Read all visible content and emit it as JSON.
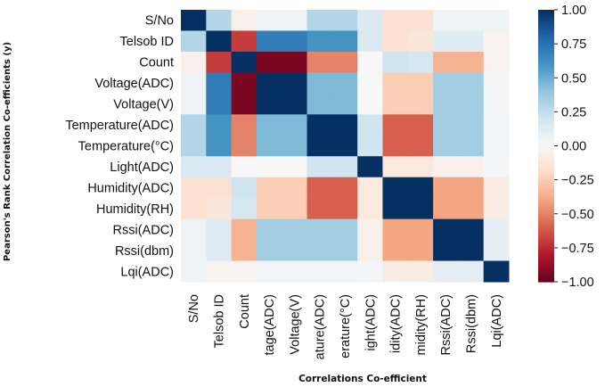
{
  "chart_data": {
    "type": "heatmap",
    "title": "",
    "xlabel": "Correlations Co-efficient",
    "ylabel": "Pearson's Rank Correlation Co-efficients (y)",
    "y_categories": [
      "S/No",
      "Telsob ID",
      "Count",
      "Voltage(ADC)",
      "Voltage(V)",
      "Temperature(ADC)",
      "Temperature(°C)",
      "Light(ADC)",
      "Humidity(ADC)",
      "Humidity(RH)",
      "Rssi(ADC)",
      "Rssi(dbm)",
      "Lqi(ADC)"
    ],
    "x_tick_labels": [
      "S/No",
      "Telsob ID",
      "Count",
      "tage(ADC)",
      "Voltage(V)",
      "ature(ADC)",
      "erature(°C)",
      "ight(ADC)",
      "idity(ADC)",
      "midity(RH)",
      "Rssi(ADC)",
      "Rssi(dbm)",
      "Lqi(ADC)"
    ],
    "values": [
      [
        1.0,
        0.3,
        -0.05,
        0.05,
        0.05,
        0.3,
        0.3,
        0.15,
        -0.15,
        -0.15,
        0.05,
        0.05,
        0.05
      ],
      [
        0.3,
        1.0,
        -0.7,
        0.7,
        0.7,
        0.6,
        0.6,
        0.15,
        -0.15,
        -0.12,
        0.12,
        0.12,
        -0.03
      ],
      [
        -0.05,
        -0.7,
        1.0,
        -0.95,
        -0.95,
        -0.5,
        -0.5,
        0.0,
        0.2,
        0.18,
        -0.35,
        -0.35,
        -0.03
      ],
      [
        0.05,
        0.7,
        -0.95,
        1.0,
        1.0,
        0.45,
        0.45,
        0.0,
        -0.25,
        -0.25,
        0.35,
        0.35,
        0.02
      ],
      [
        0.05,
        0.7,
        -0.95,
        1.0,
        1.0,
        0.45,
        0.45,
        0.0,
        -0.25,
        -0.25,
        0.35,
        0.35,
        0.02
      ],
      [
        0.3,
        0.6,
        -0.5,
        0.45,
        0.45,
        1.0,
        1.0,
        0.2,
        -0.6,
        -0.6,
        0.35,
        0.35,
        0.03
      ],
      [
        0.3,
        0.6,
        -0.5,
        0.45,
        0.45,
        1.0,
        1.0,
        0.2,
        -0.6,
        -0.6,
        0.35,
        0.35,
        0.03
      ],
      [
        0.15,
        0.15,
        0.0,
        0.0,
        0.0,
        0.2,
        0.2,
        1.0,
        -0.1,
        -0.1,
        -0.05,
        -0.05,
        0.02
      ],
      [
        -0.15,
        -0.15,
        0.2,
        -0.25,
        -0.25,
        -0.6,
        -0.6,
        -0.1,
        1.0,
        1.0,
        -0.4,
        -0.4,
        -0.08
      ],
      [
        -0.15,
        -0.12,
        0.18,
        -0.25,
        -0.25,
        -0.6,
        -0.6,
        -0.1,
        1.0,
        1.0,
        -0.4,
        -0.4,
        -0.08
      ],
      [
        0.05,
        0.12,
        -0.35,
        0.35,
        0.35,
        0.35,
        0.35,
        -0.05,
        -0.4,
        -0.4,
        1.0,
        1.0,
        0.1
      ],
      [
        0.05,
        0.12,
        -0.35,
        0.35,
        0.35,
        0.35,
        0.35,
        -0.05,
        -0.4,
        -0.4,
        1.0,
        1.0,
        0.1
      ],
      [
        0.05,
        -0.03,
        -0.03,
        0.03,
        0.03,
        0.03,
        0.03,
        0.02,
        -0.08,
        -0.08,
        0.1,
        0.1,
        1.0
      ]
    ],
    "colormap": "RdBu",
    "colormap_stops": [
      "#67001f",
      "#b2182b",
      "#d6604d",
      "#f4a582",
      "#fddbc7",
      "#f7f7f7",
      "#d1e5f0",
      "#92c5de",
      "#4393c3",
      "#2166ac",
      "#053061"
    ],
    "vlim": [
      -1,
      1
    ],
    "colorbar_ticks": [
      1.0,
      0.75,
      0.5,
      0.25,
      0.0,
      -0.25,
      -0.5,
      -0.75,
      -1.0
    ],
    "colorbar_tick_labels": [
      "1.00",
      "0.75",
      "0.50",
      "0.25",
      "0.00",
      "−0.25",
      "−0.50",
      "−0.75",
      "−1.00"
    ],
    "colorbar_placement": "right",
    "grid": false
  }
}
